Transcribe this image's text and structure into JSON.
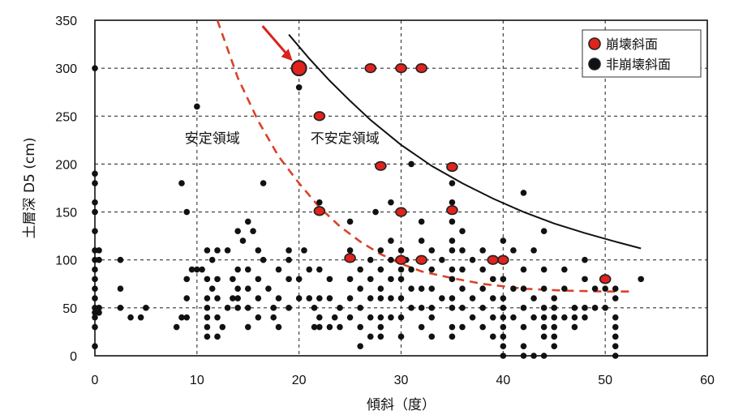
{
  "chart_data": {
    "type": "scatter",
    "xlabel": "傾斜（度）",
    "ylabel": "土層深 D5 (cm)",
    "xlim": [
      0,
      60
    ],
    "ylim": [
      0,
      350
    ],
    "xticks": [
      0,
      10,
      20,
      30,
      40,
      50,
      60
    ],
    "yticks": [
      0,
      50,
      100,
      150,
      200,
      250,
      300,
      350
    ],
    "x_grid": "dashed",
    "y_grid": "dashed",
    "legend_position": "top-right",
    "colors": {
      "collapse": "#e0231c",
      "noncollapse": "#111111",
      "boundary_dashed": "#d8432a",
      "boundary_solid": "#111111",
      "arrow": "#d9231c"
    },
    "region_labels": [
      {
        "text": "安定領域",
        "x": 11.5,
        "y": 222
      },
      {
        "text": "不安定領域",
        "x": 24.5,
        "y": 222
      }
    ],
    "highlight": {
      "x": 20,
      "y": 300
    },
    "curves": [
      {
        "style": "dashed",
        "color": "#d8432a",
        "points": [
          [
            12,
            350
          ],
          [
            14,
            290
          ],
          [
            16,
            245
          ],
          [
            18,
            208
          ],
          [
            20,
            180
          ],
          [
            22,
            155
          ],
          [
            24,
            135
          ],
          [
            26,
            119
          ],
          [
            28,
            106
          ],
          [
            30,
            96
          ],
          [
            32,
            88
          ],
          [
            35,
            81
          ],
          [
            38,
            75
          ],
          [
            42,
            70
          ],
          [
            46,
            68
          ],
          [
            50,
            67
          ],
          [
            52.5,
            67
          ]
        ]
      },
      {
        "style": "solid",
        "color": "#111111",
        "points": [
          [
            19,
            335
          ],
          [
            21,
            310
          ],
          [
            23,
            287
          ],
          [
            25,
            266
          ],
          [
            27,
            246
          ],
          [
            30,
            220
          ],
          [
            33,
            198
          ],
          [
            36,
            180
          ],
          [
            39,
            164
          ],
          [
            42,
            150
          ],
          [
            45,
            138
          ],
          [
            48,
            128
          ],
          [
            51,
            119
          ],
          [
            53.5,
            112
          ]
        ]
      }
    ],
    "series": [
      {
        "name": "崩壊斜面",
        "color": "#e0231c",
        "points": [
          [
            20,
            300
          ],
          [
            27,
            300
          ],
          [
            30,
            300
          ],
          [
            32,
            300
          ],
          [
            22,
            250
          ],
          [
            28,
            198
          ],
          [
            35,
            197
          ],
          [
            22,
            151
          ],
          [
            30,
            150
          ],
          [
            35,
            152
          ],
          [
            25,
            102
          ],
          [
            30,
            100
          ],
          [
            32,
            100
          ],
          [
            39,
            100
          ],
          [
            40,
            100
          ],
          [
            50,
            80
          ]
        ]
      },
      {
        "name": "非崩壊斜面",
        "color": "#111111",
        "points": [
          [
            0,
            300
          ],
          [
            0,
            190
          ],
          [
            0,
            180
          ],
          [
            0,
            160
          ],
          [
            0,
            150
          ],
          [
            0,
            130
          ],
          [
            0,
            110
          ],
          [
            0,
            100
          ],
          [
            0,
            90
          ],
          [
            0,
            80
          ],
          [
            0,
            70
          ],
          [
            0,
            60
          ],
          [
            0,
            50
          ],
          [
            0,
            45
          ],
          [
            0,
            40
          ],
          [
            0,
            30
          ],
          [
            0,
            10
          ],
          [
            0.4,
            110
          ],
          [
            0.4,
            100
          ],
          [
            0.4,
            50
          ],
          [
            0.4,
            45
          ],
          [
            2.5,
            100
          ],
          [
            2.5,
            70
          ],
          [
            2.5,
            50
          ],
          [
            3.5,
            40
          ],
          [
            4.5,
            40
          ],
          [
            5,
            50
          ],
          [
            8,
            30
          ],
          [
            8.5,
            40
          ],
          [
            9,
            40
          ],
          [
            8.5,
            180
          ],
          [
            9,
            150
          ],
          [
            9,
            80
          ],
          [
            9,
            60
          ],
          [
            9.5,
            90
          ],
          [
            10,
            90
          ],
          [
            10.5,
            90
          ],
          [
            10,
            260
          ],
          [
            11,
            110
          ],
          [
            11,
            80
          ],
          [
            11,
            60
          ],
          [
            11,
            50
          ],
          [
            11,
            40
          ],
          [
            11,
            30
          ],
          [
            11,
            20
          ],
          [
            11.5,
            100
          ],
          [
            11.5,
            70
          ],
          [
            12,
            110
          ],
          [
            12,
            80
          ],
          [
            12,
            60
          ],
          [
            12,
            40
          ],
          [
            12,
            20
          ],
          [
            12.5,
            30
          ],
          [
            13,
            110
          ],
          [
            13,
            50
          ],
          [
            13.5,
            80
          ],
          [
            13.5,
            60
          ],
          [
            14,
            130
          ],
          [
            14,
            90
          ],
          [
            14,
            70
          ],
          [
            14,
            60
          ],
          [
            14,
            50
          ],
          [
            14.5,
            120
          ],
          [
            15,
            140
          ],
          [
            15,
            90
          ],
          [
            15,
            70
          ],
          [
            15,
            50
          ],
          [
            15,
            30
          ],
          [
            15.5,
            130
          ],
          [
            16,
            110
          ],
          [
            16,
            80
          ],
          [
            16,
            60
          ],
          [
            16,
            40
          ],
          [
            16.5,
            100
          ],
          [
            16.5,
            180
          ],
          [
            17,
            70
          ],
          [
            17.5,
            50
          ],
          [
            17.5,
            40
          ],
          [
            18,
            90
          ],
          [
            18,
            60
          ],
          [
            18,
            30
          ],
          [
            19,
            110
          ],
          [
            19,
            100
          ],
          [
            19,
            80
          ],
          [
            19,
            50
          ],
          [
            20,
            280
          ],
          [
            20,
            80
          ],
          [
            20,
            60
          ],
          [
            20.5,
            110
          ],
          [
            21,
            90
          ],
          [
            21,
            60
          ],
          [
            21.5,
            50
          ],
          [
            21.5,
            30
          ],
          [
            22,
            160
          ],
          [
            22,
            90
          ],
          [
            22,
            60
          ],
          [
            22,
            40
          ],
          [
            22,
            30
          ],
          [
            23,
            80
          ],
          [
            23,
            60
          ],
          [
            23,
            30
          ],
          [
            23.5,
            40
          ],
          [
            24,
            50
          ],
          [
            24,
            30
          ],
          [
            25,
            140
          ],
          [
            25,
            110
          ],
          [
            25,
            80
          ],
          [
            25,
            60
          ],
          [
            25,
            40
          ],
          [
            26,
            90
          ],
          [
            26,
            70
          ],
          [
            26,
            50
          ],
          [
            26,
            30
          ],
          [
            26,
            10
          ],
          [
            27,
            100
          ],
          [
            27,
            80
          ],
          [
            27,
            60
          ],
          [
            27,
            40
          ],
          [
            27,
            20
          ],
          [
            27.5,
            150
          ],
          [
            28,
            110
          ],
          [
            28,
            90
          ],
          [
            28,
            70
          ],
          [
            28,
            60
          ],
          [
            28,
            40
          ],
          [
            28,
            30
          ],
          [
            28,
            20
          ],
          [
            29,
            160
          ],
          [
            29,
            120
          ],
          [
            29,
            100
          ],
          [
            29,
            80
          ],
          [
            29,
            60
          ],
          [
            29,
            40
          ],
          [
            30,
            150
          ],
          [
            30,
            110
          ],
          [
            30,
            90
          ],
          [
            30,
            80
          ],
          [
            30,
            60
          ],
          [
            30,
            40
          ],
          [
            30,
            20
          ],
          [
            30.5,
            100
          ],
          [
            31,
            200
          ],
          [
            31,
            90
          ],
          [
            31,
            70
          ],
          [
            31,
            50
          ],
          [
            32,
            140
          ],
          [
            32,
            120
          ],
          [
            32,
            70
          ],
          [
            32,
            50
          ],
          [
            32,
            30
          ],
          [
            33,
            110
          ],
          [
            33,
            90
          ],
          [
            33,
            70
          ],
          [
            33,
            50
          ],
          [
            33,
            40
          ],
          [
            33,
            20
          ],
          [
            34,
            100
          ],
          [
            34,
            60
          ],
          [
            35,
            180
          ],
          [
            35,
            160
          ],
          [
            35,
            140
          ],
          [
            35,
            120
          ],
          [
            35,
            110
          ],
          [
            35,
            90
          ],
          [
            35,
            80
          ],
          [
            35,
            60
          ],
          [
            35,
            50
          ],
          [
            35,
            30
          ],
          [
            35,
            20
          ],
          [
            36,
            130
          ],
          [
            36,
            110
          ],
          [
            36,
            90
          ],
          [
            36,
            70
          ],
          [
            36,
            50
          ],
          [
            36,
            30
          ],
          [
            37,
            100
          ],
          [
            37,
            60
          ],
          [
            37,
            40
          ],
          [
            38,
            110
          ],
          [
            38,
            90
          ],
          [
            38,
            70
          ],
          [
            38,
            50
          ],
          [
            38,
            30
          ],
          [
            39,
            80
          ],
          [
            39,
            60
          ],
          [
            39,
            40
          ],
          [
            39,
            20
          ],
          [
            40,
            120
          ],
          [
            40,
            100
          ],
          [
            40,
            80
          ],
          [
            40,
            60
          ],
          [
            40,
            50
          ],
          [
            40,
            40
          ],
          [
            40,
            30
          ],
          [
            40,
            20
          ],
          [
            40,
            10
          ],
          [
            40,
            0
          ],
          [
            41,
            110
          ],
          [
            41,
            70
          ],
          [
            41,
            40
          ],
          [
            42,
            170
          ],
          [
            42,
            90
          ],
          [
            42,
            70
          ],
          [
            42,
            50
          ],
          [
            42,
            30
          ],
          [
            42,
            10
          ],
          [
            42,
            0
          ],
          [
            43,
            110
          ],
          [
            43,
            60
          ],
          [
            43,
            40
          ],
          [
            43,
            0
          ],
          [
            44,
            130
          ],
          [
            44,
            90
          ],
          [
            44,
            70
          ],
          [
            44,
            50
          ],
          [
            44,
            40
          ],
          [
            44,
            30
          ],
          [
            44,
            20
          ],
          [
            44,
            0
          ],
          [
            45,
            60
          ],
          [
            45,
            50
          ],
          [
            45,
            40
          ],
          [
            45,
            30
          ],
          [
            45,
            20
          ],
          [
            45,
            10
          ],
          [
            46,
            90
          ],
          [
            46,
            70
          ],
          [
            46,
            40
          ],
          [
            47,
            50
          ],
          [
            47,
            40
          ],
          [
            47,
            30
          ],
          [
            48,
            100
          ],
          [
            48,
            80
          ],
          [
            48,
            50
          ],
          [
            48,
            40
          ],
          [
            49,
            70
          ],
          [
            49,
            50
          ],
          [
            50,
            70
          ],
          [
            50,
            50
          ],
          [
            51,
            70
          ],
          [
            51,
            60
          ],
          [
            51,
            40
          ],
          [
            51,
            30
          ],
          [
            51,
            20
          ],
          [
            51,
            10
          ],
          [
            51,
            0
          ],
          [
            53.5,
            80
          ]
        ]
      }
    ]
  }
}
